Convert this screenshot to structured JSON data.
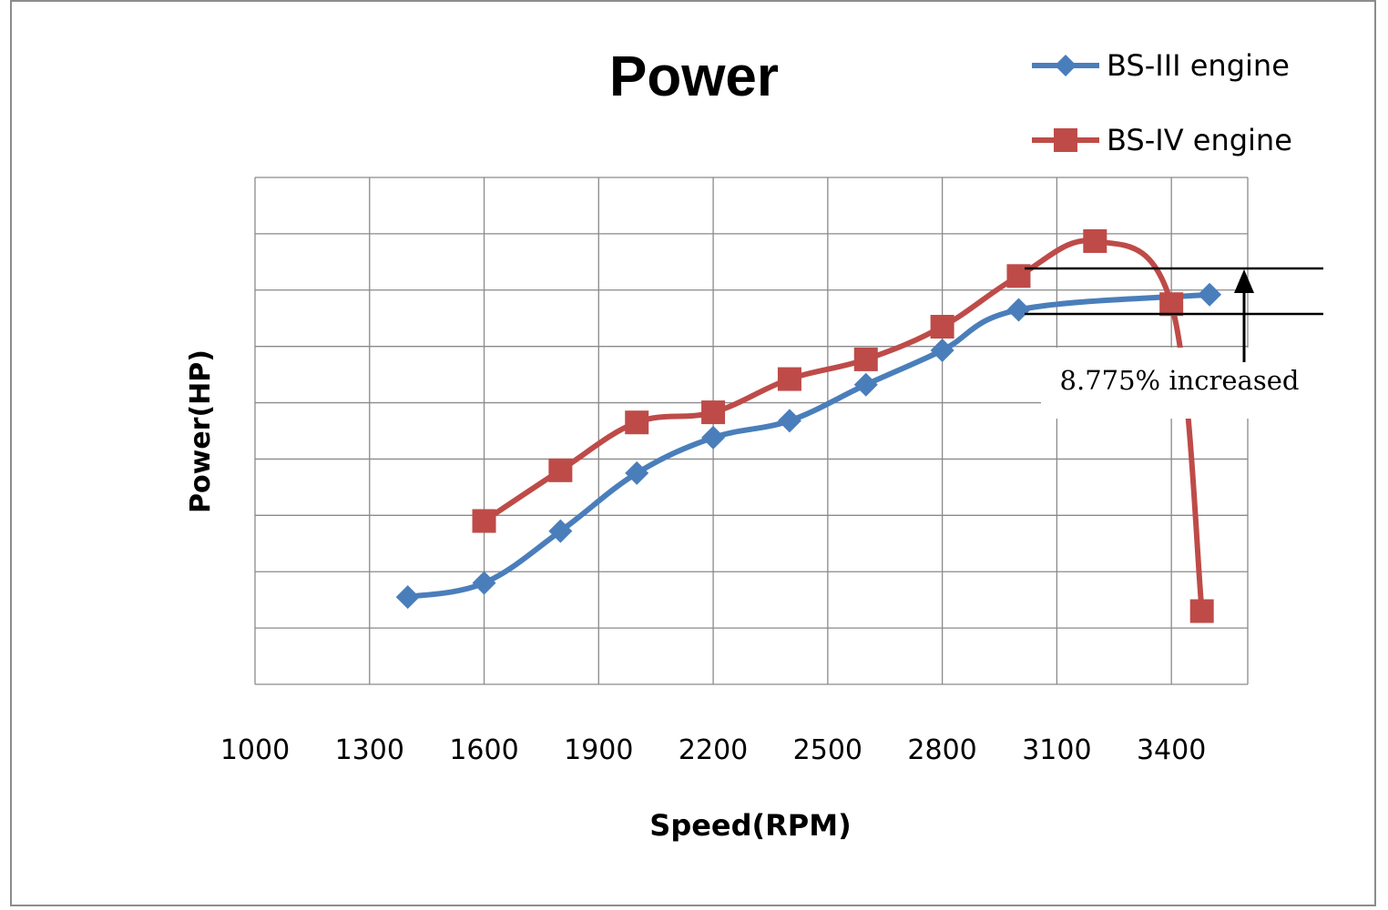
{
  "chart_data": {
    "type": "line",
    "title": "Power",
    "xlabel": "Speed(RPM)",
    "ylabel": "Power(HP)",
    "x_ticks": [
      1000,
      1300,
      1600,
      1900,
      2200,
      2500,
      2800,
      3100,
      3400
    ],
    "xlim": [
      1000,
      3600
    ],
    "ylim": [
      0,
      9
    ],
    "y_gridlines": 9,
    "grid": true,
    "legend_position": "top-right",
    "series": [
      {
        "name": "BS-III engine",
        "color": "#4a7ebb",
        "marker": "diamond",
        "x": [
          1400,
          1600,
          1800,
          2000,
          2200,
          2400,
          2600,
          2800,
          3000,
          3500
        ],
        "y": [
          1.55,
          1.8,
          2.72,
          3.75,
          4.38,
          4.68,
          5.32,
          5.93,
          6.65,
          6.92
        ]
      },
      {
        "name": "BS-IV engine",
        "color": "#be4b48",
        "marker": "square",
        "x": [
          1600,
          1800,
          2000,
          2200,
          2400,
          2600,
          2800,
          3000,
          3200,
          3400,
          3480
        ],
        "y": [
          2.9,
          3.8,
          4.65,
          4.83,
          5.42,
          5.77,
          6.35,
          7.25,
          7.87,
          6.75,
          1.3
        ]
      }
    ],
    "annotation": {
      "text": "8.775% increased"
    }
  }
}
